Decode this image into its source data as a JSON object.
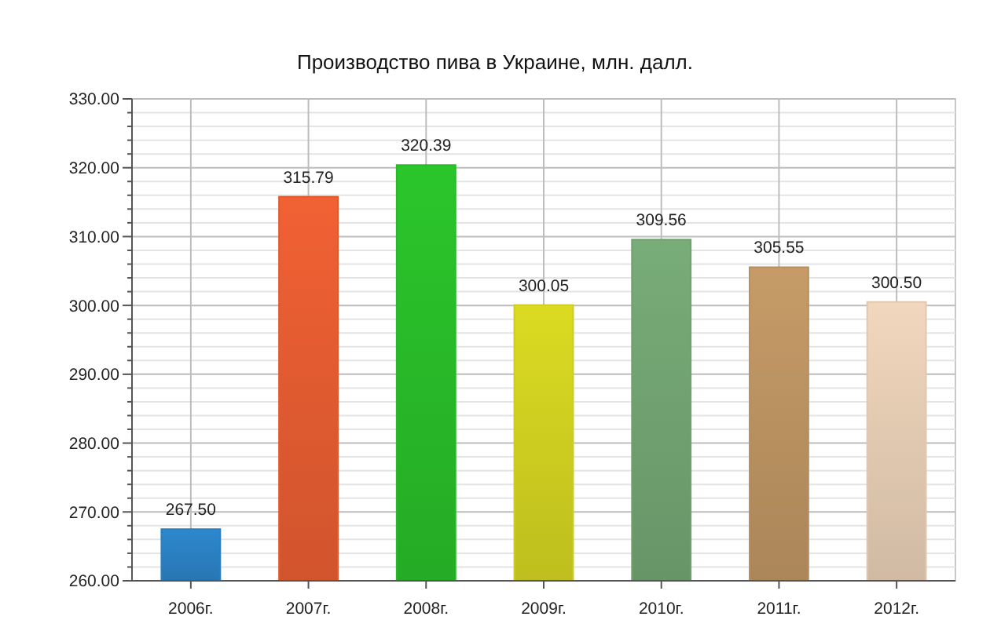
{
  "chart_data": {
    "type": "bar",
    "title": "Производство пива в Украине, млн. далл.",
    "categories": [
      "2006г.",
      "2007г.",
      "2008г.",
      "2009г.",
      "2010г.",
      "2011г.",
      "2012г."
    ],
    "values": [
      267.5,
      315.79,
      320.39,
      300.05,
      309.56,
      305.55,
      300.5
    ],
    "colors": [
      "#2a7fc0",
      "#e05a30",
      "#28b828",
      "#cccc20",
      "#70a070",
      "#b89060",
      "#e0c8b0"
    ],
    "value_labels": [
      "267.50",
      "315.79",
      "320.39",
      "300.05",
      "309.56",
      "305.55",
      "300.50"
    ],
    "ylim": [
      260,
      330
    ],
    "yticks": [
      {
        "value": 260,
        "label": "260.00"
      },
      {
        "value": 262,
        "label": null
      },
      {
        "value": 264,
        "label": null
      },
      {
        "value": 266,
        "label": null
      },
      {
        "value": 268,
        "label": null
      },
      {
        "value": 270,
        "label": "270.00"
      },
      {
        "value": 272,
        "label": null
      },
      {
        "value": 274,
        "label": null
      },
      {
        "value": 276,
        "label": null
      },
      {
        "value": 278,
        "label": null
      },
      {
        "value": 280,
        "label": "280.00"
      },
      {
        "value": 282,
        "label": null
      },
      {
        "value": 284,
        "label": null
      },
      {
        "value": 286,
        "label": null
      },
      {
        "value": 288,
        "label": null
      },
      {
        "value": 290,
        "label": "290.00"
      },
      {
        "value": 292,
        "label": null
      },
      {
        "value": 294,
        "label": null
      },
      {
        "value": 296,
        "label": null
      },
      {
        "value": 298,
        "label": null
      },
      {
        "value": 300,
        "label": "300.00"
      },
      {
        "value": 302,
        "label": null
      },
      {
        "value": 304,
        "label": null
      },
      {
        "value": 306,
        "label": null
      },
      {
        "value": 308,
        "label": null
      },
      {
        "value": 310,
        "label": "310.00"
      },
      {
        "value": 312,
        "label": null
      },
      {
        "value": 314,
        "label": null
      },
      {
        "value": 316,
        "label": null
      },
      {
        "value": 318,
        "label": null
      },
      {
        "value": 320,
        "label": "320.00"
      },
      {
        "value": 322,
        "label": null
      },
      {
        "value": 324,
        "label": null
      },
      {
        "value": 326,
        "label": null
      },
      {
        "value": 328,
        "label": null
      },
      {
        "value": 330,
        "label": "330.00"
      }
    ],
    "grid": true
  }
}
